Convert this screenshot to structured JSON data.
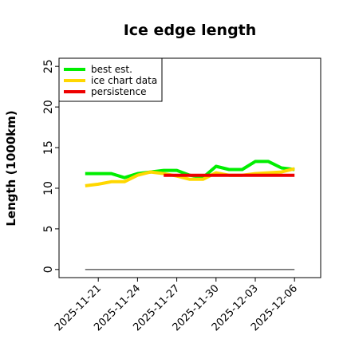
{
  "chart_data": {
    "type": "line",
    "title": "Ice edge length",
    "xlabel": "",
    "ylabel": "Length (1000km)",
    "ylim": [
      -1,
      26
    ],
    "yticks": [
      0,
      5,
      10,
      15,
      20,
      25
    ],
    "xlim": [
      "2025-11-18",
      "2025-12-08"
    ],
    "xticks": [
      "2025-11-21",
      "2025-11-24",
      "2025-11-27",
      "2025-11-30",
      "2025-12-03",
      "2025-12-06"
    ],
    "grid": false,
    "legend_position": "top-left",
    "series": [
      {
        "name": "best est.",
        "color": "#00ee00",
        "x": [
          "2025-11-20",
          "2025-11-21",
          "2025-11-22",
          "2025-11-23",
          "2025-11-24",
          "2025-11-25",
          "2025-11-26",
          "2025-11-27",
          "2025-11-28",
          "2025-11-29",
          "2025-11-30",
          "2025-12-01",
          "2025-12-02",
          "2025-12-03",
          "2025-12-04",
          "2025-12-05",
          "2025-12-06"
        ],
        "y": [
          11.8,
          11.8,
          11.8,
          11.3,
          11.8,
          12.0,
          12.2,
          12.2,
          11.6,
          11.3,
          12.7,
          12.3,
          12.3,
          13.3,
          13.3,
          12.5,
          12.3
        ]
      },
      {
        "name": "ice chart data",
        "color": "#ffd700",
        "x": [
          "2025-11-20",
          "2025-11-21",
          "2025-11-22",
          "2025-11-23",
          "2025-11-24",
          "2025-11-25",
          "2025-11-26",
          "2025-11-27",
          "2025-11-28",
          "2025-11-29",
          "2025-11-30",
          "2025-12-01",
          "2025-12-02",
          "2025-12-03",
          "2025-12-04",
          "2025-12-05",
          "2025-12-06"
        ],
        "y": [
          10.3,
          10.5,
          10.8,
          10.8,
          11.6,
          12.0,
          11.8,
          11.5,
          11.1,
          11.1,
          11.9,
          11.6,
          11.6,
          11.8,
          11.9,
          12.0,
          12.4
        ]
      },
      {
        "name": "persistence",
        "color": "#ee0000",
        "x": [
          "2025-11-26",
          "2025-12-06"
        ],
        "y": [
          11.6,
          11.6
        ]
      },
      {
        "name": "",
        "color": "#707070",
        "x": [
          "2025-11-20",
          "2025-12-06"
        ],
        "y": [
          0,
          0
        ]
      }
    ]
  }
}
